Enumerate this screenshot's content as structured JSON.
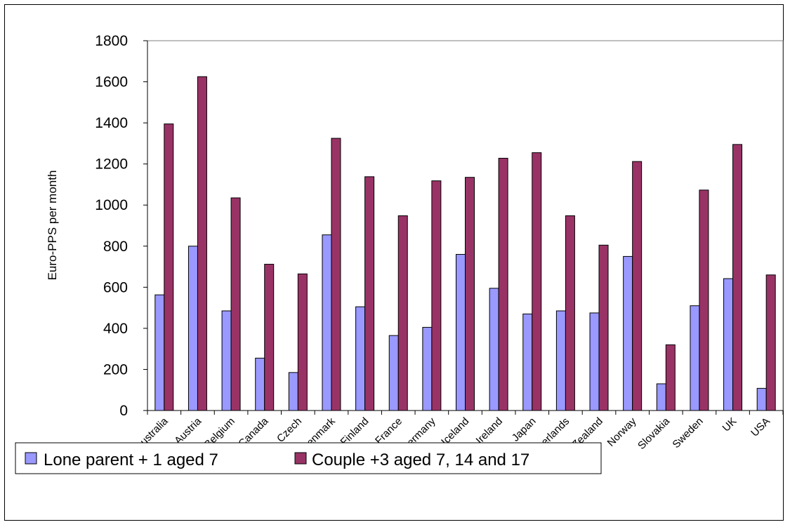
{
  "chart_data": {
    "type": "bar",
    "ylabel": "Euro-PPS per month",
    "xlabel": "",
    "ylim": [
      0,
      1800
    ],
    "yticks": [
      0,
      200,
      400,
      600,
      800,
      1000,
      1200,
      1400,
      1600,
      1800
    ],
    "grid": false,
    "legend_position": "bottom-left",
    "categories": [
      "Australia",
      "Austria",
      "Belgium",
      "Canada",
      "Czech",
      "Denmark",
      "Finland",
      "France",
      "Germany",
      "Iceland",
      "Ireland",
      "Japan",
      "Netherlands",
      "New Zealand",
      "Norway",
      "Slovakia",
      "Sweden",
      "UK",
      "USA"
    ],
    "series": [
      {
        "name": "Lone parent + 1 aged 7",
        "color": "#9999ff",
        "values": [
          563,
          800,
          485,
          255,
          185,
          855,
          505,
          365,
          405,
          760,
          595,
          470,
          485,
          475,
          750,
          130,
          510,
          642,
          108
        ]
      },
      {
        "name": "Couple +3 aged 7, 14 and 17",
        "color": "#993366",
        "values": [
          1395,
          1625,
          1035,
          712,
          665,
          1325,
          1138,
          948,
          1118,
          1135,
          1228,
          1255,
          948,
          805,
          1212,
          320,
          1073,
          1295,
          660
        ]
      }
    ]
  }
}
